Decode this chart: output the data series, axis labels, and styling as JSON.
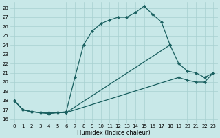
{
  "xlabel": "Humidex (Indice chaleur)",
  "background_color": "#c8e8e8",
  "grid_color": "#a8d0d0",
  "line_color": "#1a6060",
  "xlim": [
    -0.5,
    23.5
  ],
  "ylim": [
    15.6,
    28.6
  ],
  "xticks": [
    0,
    1,
    2,
    3,
    4,
    5,
    6,
    7,
    8,
    9,
    10,
    11,
    12,
    13,
    14,
    15,
    16,
    17,
    18,
    19,
    20,
    21,
    22,
    23
  ],
  "yticks": [
    16,
    17,
    18,
    19,
    20,
    21,
    22,
    23,
    24,
    25,
    26,
    27,
    28
  ],
  "line1_x": [
    0,
    1,
    2,
    3,
    4,
    5,
    6,
    7,
    8,
    9,
    10,
    11,
    12,
    13,
    14,
    15,
    16,
    17,
    18
  ],
  "line1_y": [
    18,
    17,
    16.8,
    16.7,
    16.7,
    16.7,
    16.8,
    20.5,
    24.0,
    25.5,
    26.3,
    26.7,
    27.0,
    27.0,
    27.5,
    28.2,
    27.3,
    26.5,
    24.0
  ],
  "line2_x": [
    0,
    1,
    2,
    3,
    4,
    5,
    6,
    18,
    19,
    20,
    21,
    22,
    23
  ],
  "line2_y": [
    18,
    17,
    16.8,
    16.7,
    16.6,
    16.7,
    16.7,
    24.0,
    22.0,
    21.2,
    21.0,
    20.5,
    21.0
  ],
  "line3_x": [
    0,
    1,
    2,
    3,
    4,
    5,
    6,
    19,
    20,
    21,
    22,
    23
  ],
  "line3_y": [
    18,
    17,
    16.8,
    16.7,
    16.6,
    16.7,
    16.7,
    20.5,
    20.2,
    20.0,
    20.0,
    21.0
  ],
  "marker_size": 2.2,
  "linewidth": 0.9,
  "tick_fontsize": 5.0,
  "xlabel_fontsize": 6.0
}
